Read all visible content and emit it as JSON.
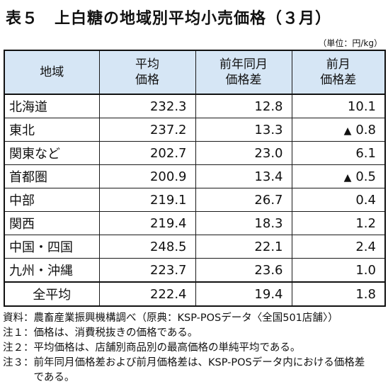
{
  "title": "表５　上白糖の地域別平均小売価格（３月）",
  "unit": "（単位：円/kg）",
  "headers": {
    "region": "地域",
    "avg_l1": "平均",
    "avg_l2": "価格",
    "yoy_l1": "前年同月",
    "yoy_l2": "価格差",
    "mom_l1": "前月",
    "mom_l2": "価格差"
  },
  "rows": [
    {
      "region": "北海道",
      "avg": "232.3",
      "yoy": "12.8",
      "mom": "10.1",
      "mom_mark": ""
    },
    {
      "region": "東北",
      "avg": "237.2",
      "yoy": "13.3",
      "mom": "0.8",
      "mom_mark": "▲"
    },
    {
      "region": "関東など",
      "avg": "202.7",
      "yoy": "23.0",
      "mom": "6.1",
      "mom_mark": ""
    },
    {
      "region": "首都圏",
      "avg": "200.9",
      "yoy": "13.4",
      "mom": "0.5",
      "mom_mark": "▲"
    },
    {
      "region": "中部",
      "avg": "219.1",
      "yoy": "26.7",
      "mom": "0.4",
      "mom_mark": ""
    },
    {
      "region": "関西",
      "avg": "219.4",
      "yoy": "18.3",
      "mom": "1.2",
      "mom_mark": ""
    },
    {
      "region": "中国・四国",
      "avg": "248.5",
      "yoy": "22.1",
      "mom": "2.4",
      "mom_mark": ""
    },
    {
      "region": "九州・沖縄",
      "avg": "223.7",
      "yoy": "23.6",
      "mom": "1.0",
      "mom_mark": ""
    }
  ],
  "total": {
    "region": "全平均",
    "avg": "222.4",
    "yoy": "19.4",
    "mom": "1.8"
  },
  "notes": [
    {
      "label": "資料：",
      "text": "農畜産業振興機構調べ（原典：KSP-POSデータ〈全国501店舗〉）"
    },
    {
      "label": "注１：",
      "text": "価格は、消費税抜きの価格である。"
    },
    {
      "label": "注２：",
      "text": "平均価格は、店舗別商品別の最高価格の単純平均である。"
    },
    {
      "label": "注３：",
      "text": "前年同月価格差および前月価格差は、KSP-POSデータ内における価格差である。"
    }
  ],
  "colors": {
    "header_bg": "#d6e6f5"
  }
}
